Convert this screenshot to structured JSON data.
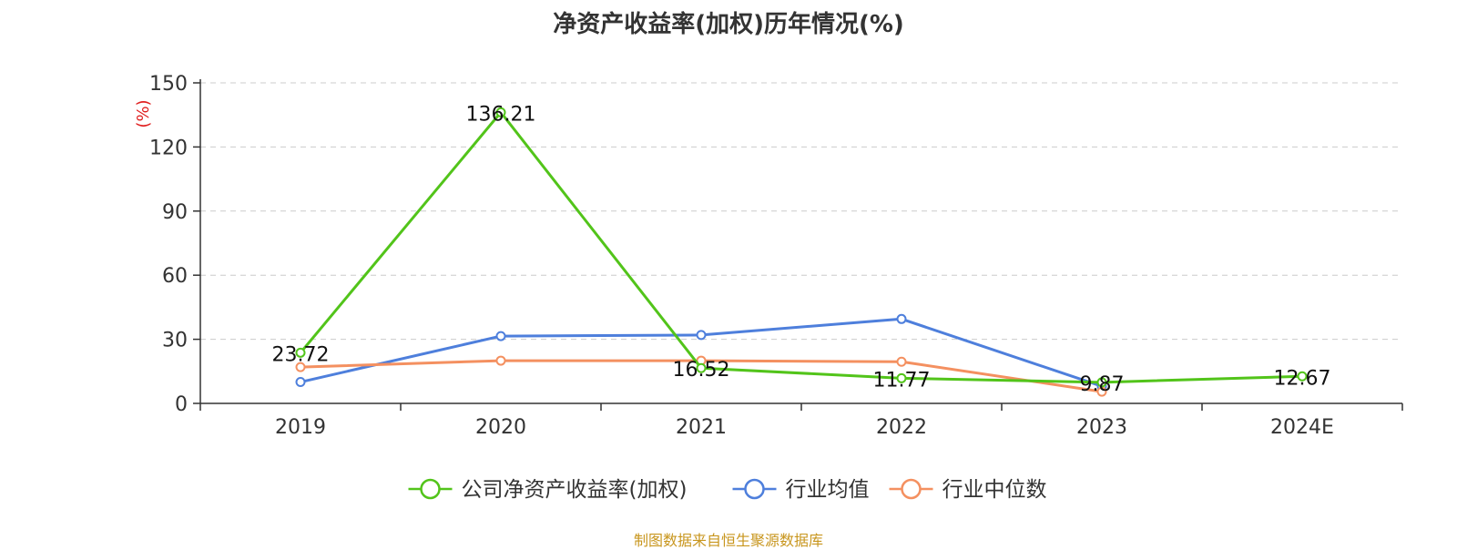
{
  "chart_data": {
    "type": "line",
    "title": "净资产收益率(加权)历年情况(%)",
    "ylabel": "(%)",
    "categories": [
      "2019",
      "2020",
      "2021",
      "2022",
      "2023",
      "2024E"
    ],
    "ylim": [
      0,
      150
    ],
    "yticks": [
      0,
      30,
      60,
      90,
      120,
      150
    ],
    "grid": true,
    "legend_position": "bottom-center",
    "series": [
      {
        "name": "公司净资产收益率(加权)",
        "color": "#52c41a",
        "values": [
          23.72,
          136.21,
          16.52,
          11.77,
          9.87,
          12.67
        ],
        "labels": [
          "23.72",
          "136.21",
          "16.52",
          "11.77",
          "9.87",
          "12.67"
        ]
      },
      {
        "name": "行业均值",
        "color": "#4e7fdc",
        "values": [
          10,
          31.5,
          32,
          39.5,
          8,
          null
        ]
      },
      {
        "name": "行业中位数",
        "color": "#f49060",
        "values": [
          17,
          20,
          20,
          19.5,
          5.5,
          null
        ]
      }
    ]
  },
  "footer": {
    "source": "制图数据来自恒生聚源数据库"
  }
}
